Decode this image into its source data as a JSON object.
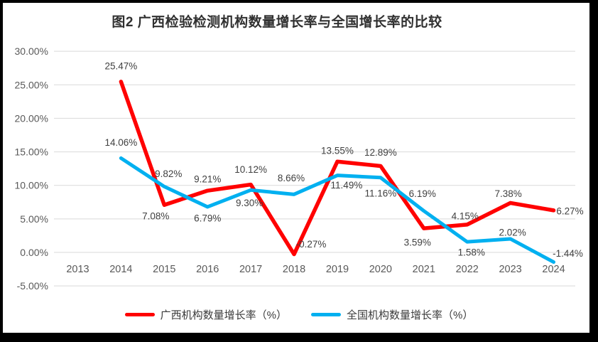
{
  "chart_data": {
    "type": "line",
    "title": "图2 广西检验检测机构数量增长率与全国增长率的比较",
    "categories": [
      "2013",
      "2014",
      "2015",
      "2016",
      "2017",
      "2018",
      "2019",
      "2020",
      "2021",
      "2022",
      "2023",
      "2024"
    ],
    "series": [
      {
        "name": "广西机构数量增长率（%）",
        "color": "#ff0000",
        "stroke_width": 5.5,
        "values": [
          null,
          25.47,
          7.08,
          9.21,
          10.12,
          -0.27,
          13.55,
          12.89,
          3.59,
          4.15,
          7.38,
          6.27
        ],
        "labels": [
          "",
          "25.47%",
          "7.08%",
          "9.21%",
          "10.12%",
          "-0.27%",
          "13.55%",
          "12.89%",
          "3.59%",
          "4.15%",
          "7.38%",
          "6.27%"
        ],
        "label_offsets": [
          [
            0,
            0
          ],
          [
            0,
            -22
          ],
          [
            -12,
            16
          ],
          [
            0,
            -16
          ],
          [
            0,
            -21
          ],
          [
            24,
            -14
          ],
          [
            0,
            -15
          ],
          [
            0,
            -19
          ],
          [
            -9,
            20
          ],
          [
            -3,
            -12
          ],
          [
            -3,
            -13
          ],
          [
            23,
            1
          ]
        ]
      },
      {
        "name": "全国机构数量增长率（%）",
        "color": "#00b0f0",
        "stroke_width": 5,
        "values": [
          null,
          14.06,
          9.82,
          6.79,
          9.3,
          8.66,
          11.49,
          11.16,
          6.19,
          1.58,
          2.02,
          -1.44
        ],
        "labels": [
          "",
          "14.06%",
          "9.82%",
          "6.79%",
          "9.30%",
          "8.66%",
          "11.49%",
          "11.16%",
          "6.19%",
          "1.58%",
          "2.02%",
          "-1.44%"
        ],
        "label_offsets": [
          [
            0,
            0
          ],
          [
            0,
            -22
          ],
          [
            6,
            -18
          ],
          [
            0,
            16
          ],
          [
            -2,
            18
          ],
          [
            -4,
            -23
          ],
          [
            13,
            14
          ],
          [
            0,
            22
          ],
          [
            -2,
            -24
          ],
          [
            6,
            15
          ],
          [
            3,
            -9
          ],
          [
            20,
            -12
          ]
        ]
      }
    ],
    "y_axis": {
      "min": -5,
      "max": 30,
      "step": 5,
      "tick_values": [
        30,
        25,
        20,
        15,
        10,
        5,
        0,
        -5
      ],
      "tick_labels": [
        "30.00%",
        "25.00%",
        "20.00%",
        "15.00%",
        "10.00%",
        "5.00%",
        "0.00%",
        "-5.00%"
      ]
    },
    "grid": true,
    "legend_position": "bottom",
    "colors": {
      "gridline": "#d9d9d9",
      "axis_text": "#595959",
      "data_label": "#404040",
      "title_text": "#303030",
      "background": "#ffffff",
      "frame_border": "#000000"
    }
  }
}
